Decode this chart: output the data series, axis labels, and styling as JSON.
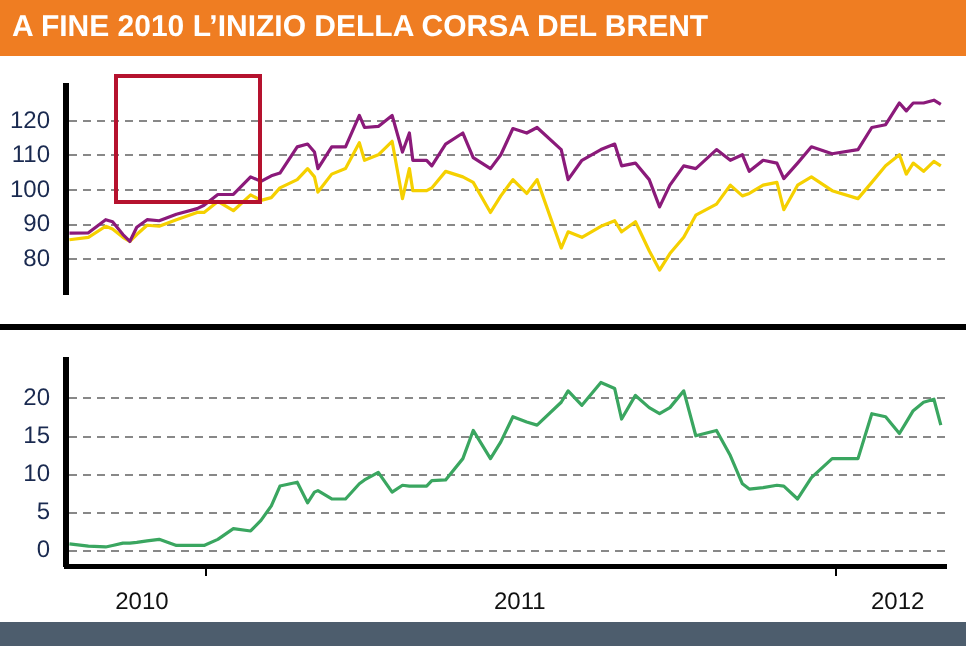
{
  "chart_data": [
    {
      "type": "line",
      "title": "A FINE 2010 L’INIZIO DELLA CORSA DEL BRENT",
      "x": [
        "2010-10-14",
        "2010-10-25",
        "2010-11-04",
        "2010-11-08",
        "2010-11-14",
        "2010-11-18",
        "2010-11-22",
        "2010-11-28",
        "2010-12-05",
        "2010-12-15",
        "2010-12-27",
        "2010-12-31",
        "2011-01-08",
        "2011-01-17",
        "2011-01-27",
        "2011-02-02",
        "2011-02-08",
        "2011-02-13",
        "2011-02-23",
        "2011-03-01",
        "2011-03-05",
        "2011-03-07",
        "2011-03-15",
        "2011-03-23",
        "2011-03-31",
        "2011-04-03",
        "2011-04-11",
        "2011-04-19",
        "2011-04-25",
        "2011-04-29",
        "2011-05-01",
        "2011-05-09",
        "2011-05-12",
        "2011-05-20",
        "2011-05-30",
        "2011-06-05",
        "2011-06-15",
        "2011-06-21",
        "2011-06-28",
        "2011-07-06",
        "2011-07-12",
        "2011-07-26",
        "2011-07-30",
        "2011-08-07",
        "2011-08-18",
        "2011-08-26",
        "2011-08-30",
        "2011-09-07",
        "2011-09-15",
        "2011-09-21",
        "2011-09-27",
        "2011-10-05",
        "2011-10-12",
        "2011-10-24",
        "2011-11-01",
        "2011-11-08",
        "2011-11-12",
        "2011-11-20",
        "2011-11-28",
        "2011-12-02",
        "2011-12-10",
        "2011-12-18",
        "2011-12-30",
        "2012-01-14",
        "2012-01-22",
        "2012-01-30",
        "2012-02-07",
        "2012-02-11",
        "2012-02-15",
        "2012-02-21",
        "2012-02-27",
        "2012-03-02"
      ],
      "series": [
        {
          "color": "#8b1a7a",
          "values": [
            87.5,
            87.6,
            91.4,
            90.8,
            87.1,
            85.1,
            89.2,
            91.4,
            91.1,
            93,
            94.6,
            95.6,
            98.7,
            98.7,
            103.8,
            102.5,
            104.1,
            104.9,
            112.5,
            113.3,
            111,
            106.2,
            112.5,
            112.5,
            121.6,
            118.1,
            118.4,
            121.6,
            111,
            116.5,
            108.6,
            108.6,
            107,
            113.3,
            116.5,
            109.4,
            106.2,
            110.2,
            117.8,
            116.5,
            118.1,
            111.7,
            103,
            108.6,
            111.7,
            113.3,
            107,
            107.8,
            103,
            95.1,
            101.4,
            107,
            106.2,
            111.7,
            108.6,
            110.2,
            105.4,
            108.6,
            107.8,
            103.3,
            107.8,
            112.5,
            110.5,
            111.7,
            118.1,
            118.9,
            125.2,
            122.9,
            125.2,
            125.2,
            126,
            124.8
          ]
        },
        {
          "color": "#f5d000",
          "values": [
            85.6,
            86.3,
            89.5,
            88.7,
            86.3,
            85.1,
            87.1,
            89.8,
            89.5,
            91.4,
            93.5,
            93.5,
            96.7,
            94,
            98.6,
            97,
            97.8,
            100.6,
            103,
            106.2,
            103.8,
            99.4,
            104.6,
            106.2,
            113.7,
            108.6,
            110.2,
            114.1,
            97.5,
            106.2,
            99.8,
            99.8,
            100.6,
            105.4,
            103.8,
            102.2,
            93.5,
            98.3,
            103,
            99,
            103,
            83.2,
            87.9,
            86.3,
            89.5,
            91.1,
            87.9,
            90.8,
            82.4,
            76.8,
            81.6,
            86.3,
            92.7,
            95.9,
            101.4,
            98.3,
            99,
            101.4,
            102.2,
            94.3,
            101.4,
            103.8,
            99.8,
            97.5,
            102.2,
            107,
            110.2,
            104.6,
            107.8,
            105.4,
            108.3,
            107
          ]
        }
      ],
      "xlim": [
        "2010-10-12",
        "2012-03-05"
      ],
      "ylim": [
        70,
        130
      ],
      "yticks": [
        80,
        90,
        100,
        110,
        120
      ],
      "grid": "y",
      "tick_labels": "y",
      "legend": false,
      "marker": "none",
      "line_style": "solid"
    },
    {
      "type": "line",
      "x": [
        "2010-10-14",
        "2010-10-25",
        "2010-11-04",
        "2010-11-08",
        "2010-11-14",
        "2010-11-18",
        "2010-11-22",
        "2010-11-28",
        "2010-12-05",
        "2010-12-15",
        "2010-12-27",
        "2010-12-31",
        "2011-01-08",
        "2011-01-17",
        "2011-01-27",
        "2011-02-02",
        "2011-02-08",
        "2011-02-13",
        "2011-02-23",
        "2011-03-01",
        "2011-03-05",
        "2011-03-07",
        "2011-03-15",
        "2011-03-23",
        "2011-03-31",
        "2011-04-03",
        "2011-04-11",
        "2011-04-19",
        "2011-04-25",
        "2011-04-29",
        "2011-05-01",
        "2011-05-09",
        "2011-05-12",
        "2011-05-20",
        "2011-05-30",
        "2011-06-05",
        "2011-06-15",
        "2011-06-21",
        "2011-06-28",
        "2011-07-06",
        "2011-07-12",
        "2011-07-26",
        "2011-07-30",
        "2011-08-07",
        "2011-08-18",
        "2011-08-26",
        "2011-08-30",
        "2011-09-07",
        "2011-09-15",
        "2011-09-21",
        "2011-09-27",
        "2011-10-05",
        "2011-10-12",
        "2011-10-24",
        "2011-11-01",
        "2011-11-08",
        "2011-11-12",
        "2011-11-20",
        "2011-11-28",
        "2011-12-02",
        "2011-12-10",
        "2011-12-18",
        "2011-12-30",
        "2012-01-14",
        "2012-01-22",
        "2012-01-30",
        "2012-02-07",
        "2012-02-11",
        "2012-02-15",
        "2012-02-21",
        "2012-02-27",
        "2012-03-02"
      ],
      "series": [
        {
          "color": "#3aa660",
          "values": [
            0.9,
            0.6,
            0.5,
            0.7,
            1,
            1,
            1.1,
            1.3,
            1.5,
            0.7,
            0.7,
            0.7,
            1.5,
            2.9,
            2.6,
            4,
            5.9,
            8.5,
            9,
            6.3,
            7.7,
            7.9,
            6.8,
            6.8,
            8.8,
            9.3,
            10.3,
            7.7,
            8.6,
            8.5,
            8.5,
            8.5,
            9.2,
            9.3,
            12.1,
            15.8,
            12.1,
            14.3,
            17.6,
            16.9,
            16.5,
            19.5,
            21,
            19.1,
            22.1,
            21.3,
            17.3,
            20.4,
            18.8,
            18,
            18.8,
            21,
            15.1,
            15.8,
            12.5,
            8.8,
            8.1,
            8.3,
            8.6,
            8.5,
            6.8,
            9.6,
            12.1,
            12.1,
            18,
            17.6,
            15.4,
            16.9,
            18.4,
            19.5,
            19.9,
            16.5
          ]
        }
      ],
      "xlim": [
        "2010-10-12",
        "2012-03-05"
      ],
      "xticks": [
        {
          "value": "2010-11-25",
          "label": "2010"
        },
        {
          "value": "2011-01-01",
          "label": null
        },
        {
          "value": "2011-07-02",
          "label": "2011"
        },
        {
          "value": "2012-01-01",
          "label": null
        },
        {
          "value": "2012-02-06",
          "label": "2012"
        }
      ],
      "ylim": [
        -2,
        25
      ],
      "yticks": [
        0,
        5,
        10,
        15,
        20
      ],
      "grid": "y",
      "legend": false,
      "marker": "none",
      "line_style": "solid"
    }
  ]
}
